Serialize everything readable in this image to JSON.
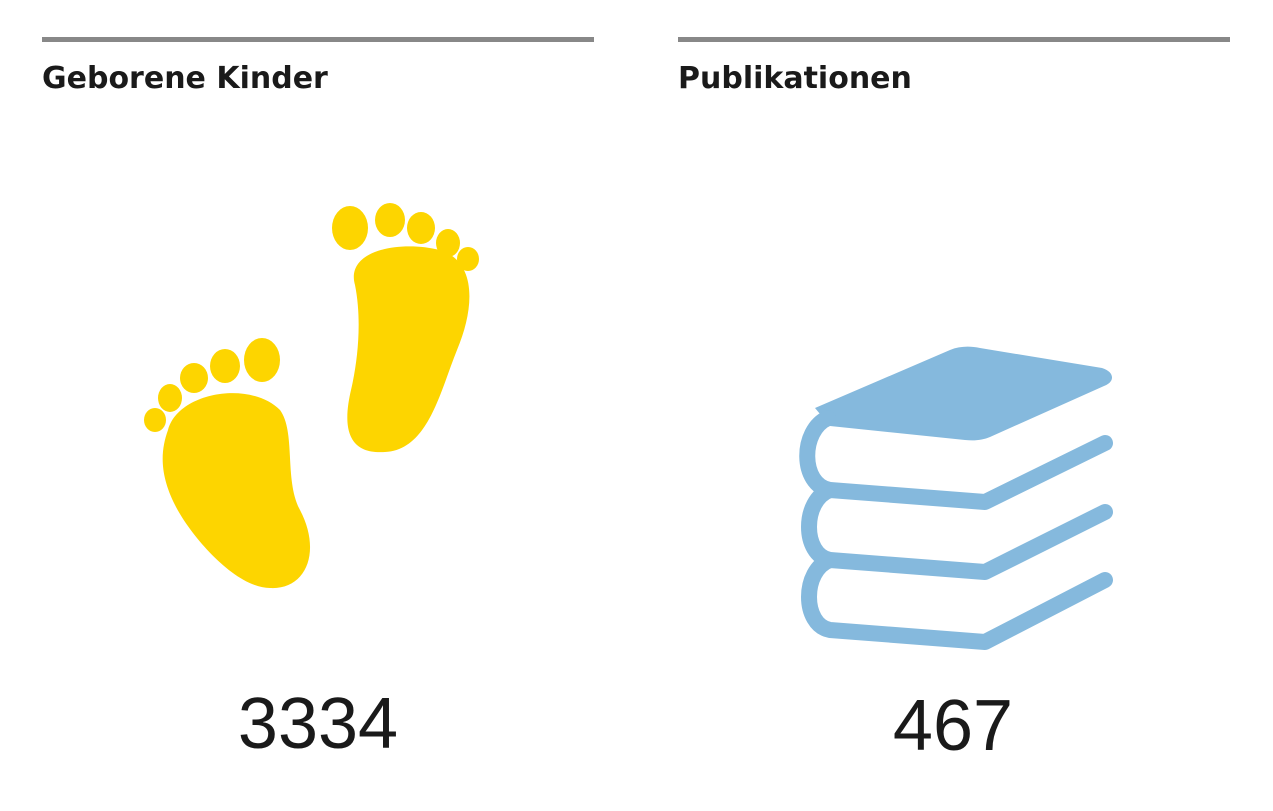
{
  "panels": [
    {
      "title": "Geborene Kinder",
      "value": 3334
    },
    {
      "title": "Publikationen",
      "value": 467
    }
  ]
}
